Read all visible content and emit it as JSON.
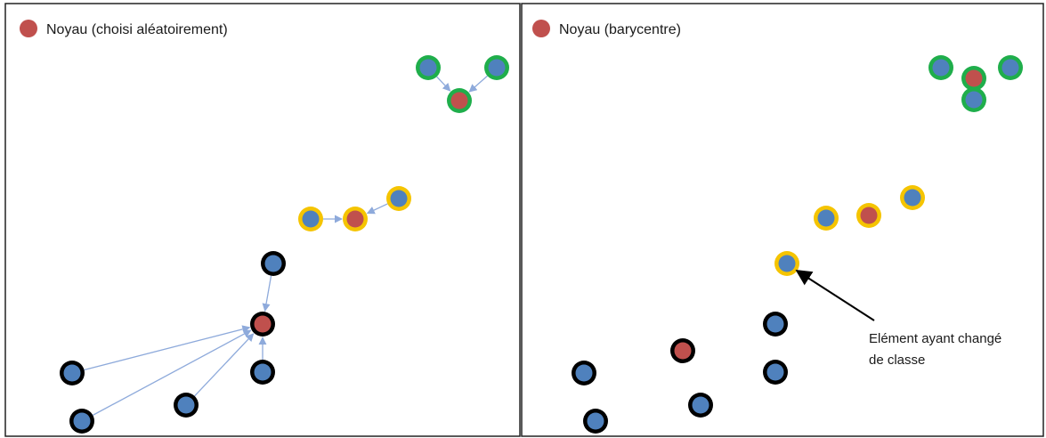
{
  "panels": [
    {
      "legend_label": "Noyau (choisi aléatoirement)"
    },
    {
      "legend_label": "Noyau (barycentre)",
      "annotation": {
        "line1": "Elément ayant changé",
        "line2": "de classe"
      }
    }
  ],
  "colors": {
    "nucleus_fill": "#c0504d",
    "point_fill": "#4f81bd",
    "cluster_green": "#1fae4b",
    "cluster_yellow": "#f5c400",
    "cluster_black": "#000000",
    "arrow_blue": "#8eaadb",
    "annotation_arrow": "#000000",
    "frame": "#222222"
  }
}
